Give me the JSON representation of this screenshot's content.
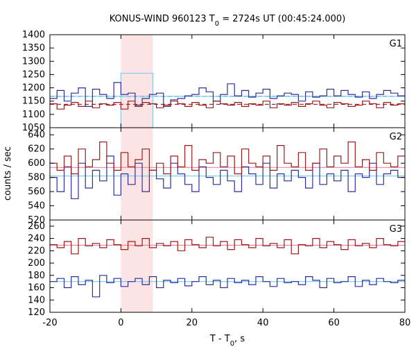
{
  "chart_data": {
    "type": "line",
    "title": {
      "prefix": "KONUS-WIND 960123 T",
      "sub": "0",
      "suffix": " = 2724s UT (00:45:24.000)"
    },
    "xlabel": {
      "prefix": "T - T",
      "sub": "0",
      "suffix": ", s"
    },
    "ylabel": "counts / sec",
    "xlim": [
      -20,
      80
    ],
    "x_ticks": [
      "-20",
      "0",
      "20",
      "40",
      "60",
      "80"
    ],
    "highlight_interval": [
      0,
      9
    ],
    "highlight_color": "#fde4e4",
    "bin_width": 2,
    "x_start": -20,
    "panels": [
      {
        "label": "G1",
        "ylim": [
          1050,
          1400
        ],
        "y_ticks": [
          "1050",
          "1100",
          "1150",
          "1200",
          "1250",
          "1300",
          "1350",
          "1400"
        ],
        "series": [
          {
            "color": "#2d2d9c",
            "values": [
              1160,
              1190,
              1150,
              1180,
              1200,
              1130,
              1195,
              1175,
              1160,
              1220,
              1175,
              1180,
              1135,
              1160,
              1175,
              1180,
              1130,
              1155,
              1160,
              1170,
              1175,
              1200,
              1185,
              1150,
              1175,
              1215,
              1170,
              1190,
              1165,
              1180,
              1195,
              1160,
              1170,
              1180,
              1175,
              1150,
              1185,
              1165,
              1170,
              1195,
              1170,
              1190,
              1175,
              1165,
              1185,
              1160,
              1175,
              1190,
              1180,
              1170
            ]
          },
          {
            "color": "#9c1a1a",
            "values": [
              1140,
              1120,
              1135,
              1145,
              1130,
              1150,
              1125,
              1140,
              1135,
              1145,
              1120,
              1150,
              1130,
              1145,
              1140,
              1125,
              1135,
              1150,
              1140,
              1130,
              1145,
              1135,
              1125,
              1150,
              1140,
              1135,
              1145,
              1130,
              1140,
              1135,
              1150,
              1125,
              1140,
              1135,
              1145,
              1130,
              1140,
              1150,
              1135,
              1125,
              1145,
              1140,
              1130,
              1135,
              1150,
              1140,
              1125,
              1145,
              1135,
              1140
            ]
          }
        ],
        "background_lines": [
          {
            "color": "#2d2d9c",
            "value": 1168,
            "style": "dashed"
          },
          {
            "color": "#9c1a1a",
            "value": 1138,
            "style": "dashed"
          },
          {
            "color": "#6fd0ee",
            "value": 1168,
            "style": "solid"
          }
        ],
        "highlight_level": {
          "value": 1255,
          "color": "#8fc8e6"
        }
      },
      {
        "label": "G2",
        "ylim": [
          520,
          650
        ],
        "y_ticks": [
          "520",
          "540",
          "560",
          "580",
          "600",
          "620",
          "640"
        ],
        "series": [
          {
            "color": "#2d2d9c",
            "values": [
              580,
              560,
              595,
              550,
              600,
              565,
              590,
              575,
              610,
              555,
              585,
              570,
              600,
              560,
              590,
              578,
              565,
              600,
              585,
              570,
              560,
              595,
              580,
              570,
              590,
              575,
              560,
              595,
              585,
              570,
              600,
              565,
              585,
              575,
              590,
              580,
              565,
              600,
              570,
              585,
              575,
              590,
              560,
              585,
              580,
              600,
              570,
              585,
              590,
              580
            ]
          },
          {
            "color": "#9c1a1a",
            "values": [
              600,
              590,
              610,
              585,
              620,
              595,
              605,
              630,
              600,
              590,
              615,
              595,
              605,
              620,
              590,
              600,
              585,
              610,
              595,
              625,
              590,
              605,
              600,
              615,
              595,
              610,
              585,
              620,
              600,
              595,
              610,
              590,
              625,
              600,
              595,
              615,
              590,
              600,
              620,
              595,
              610,
              600,
              630,
              595,
              605,
              590,
              615,
              600,
              595,
              610
            ]
          }
        ],
        "background_lines": [
          {
            "color": "#e58aa0",
            "value": 594,
            "style": "solid"
          },
          {
            "color": "#6fd0ee",
            "value": 582,
            "style": "solid"
          }
        ]
      },
      {
        "label": "G3",
        "ylim": [
          120,
          270
        ],
        "y_ticks": [
          "120",
          "140",
          "160",
          "180",
          "200",
          "220",
          "240",
          "260"
        ],
        "series": [
          {
            "color": "#2d2d9c",
            "values": [
              170,
              175,
              160,
              178,
              165,
              172,
              145,
              180,
              168,
              175,
              162,
              170,
              175,
              165,
              178,
              160,
              172,
              168,
              175,
              163,
              170,
              178,
              165,
              172,
              160,
              175,
              168,
              172,
              165,
              178,
              170,
              162,
              175,
              168,
              170,
              165,
              178,
              172,
              160,
              175,
              168,
              170,
              178,
              162,
              172,
              165,
              175,
              170,
              168,
              172
            ]
          },
          {
            "color": "#9c1a1a",
            "values": [
              230,
              225,
              235,
              215,
              240,
              228,
              232,
              225,
              238,
              230,
              222,
              235,
              228,
              240,
              225,
              232,
              228,
              235,
              220,
              238,
              230,
              225,
              242,
              228,
              235,
              222,
              238,
              230,
              225,
              240,
              228,
              232,
              225,
              238,
              215,
              230,
              228,
              240,
              225,
              235,
              230,
              222,
              238,
              228,
              232,
              225,
              240,
              230,
              228,
              235
            ]
          }
        ],
        "background_lines": [
          {
            "color": "#e58aa0",
            "value": 229,
            "style": "solid"
          },
          {
            "color": "#6fd0ee",
            "value": 170,
            "style": "solid"
          }
        ]
      }
    ]
  }
}
